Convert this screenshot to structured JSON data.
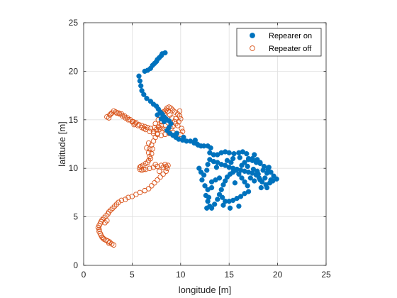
{
  "chart_data": {
    "type": "scatter",
    "title": "",
    "xlabel": "longitude [m]",
    "ylabel": "latitude [m]",
    "xlim": [
      0,
      25
    ],
    "ylim": [
      0,
      25
    ],
    "xticks": [
      "0",
      "5",
      "10",
      "15",
      "20",
      "25"
    ],
    "yticks": [
      "0",
      "5",
      "10",
      "15",
      "20",
      "25"
    ],
    "grid": true,
    "legend_position": "top-right",
    "series": [
      {
        "name": "Repearer on",
        "marker": "filled-circle",
        "color": "#0072BD",
        "points": [
          [
            8.4,
            21.9
          ],
          [
            8.1,
            21.8
          ],
          [
            8.0,
            21.6
          ],
          [
            7.8,
            21.4
          ],
          [
            7.6,
            21.2
          ],
          [
            7.5,
            21.0
          ],
          [
            7.3,
            20.8
          ],
          [
            7.1,
            20.6
          ],
          [
            6.9,
            20.3
          ],
          [
            6.6,
            20.1
          ],
          [
            6.3,
            20.0
          ],
          [
            5.7,
            19.5
          ],
          [
            5.8,
            19.0
          ],
          [
            5.9,
            18.5
          ],
          [
            6.0,
            18.0
          ],
          [
            6.2,
            17.6
          ],
          [
            6.5,
            17.2
          ],
          [
            6.9,
            16.9
          ],
          [
            7.2,
            16.6
          ],
          [
            7.5,
            16.4
          ],
          [
            7.7,
            16.1
          ],
          [
            7.9,
            15.8
          ],
          [
            8.1,
            15.6
          ],
          [
            8.3,
            15.3
          ],
          [
            8.5,
            15.1
          ],
          [
            8.8,
            14.9
          ],
          [
            9.0,
            14.6
          ],
          [
            8.8,
            14.2
          ],
          [
            8.6,
            13.9
          ],
          [
            8.9,
            13.6
          ],
          [
            9.2,
            13.4
          ],
          [
            9.5,
            13.2
          ],
          [
            9.8,
            13.0
          ],
          [
            10.2,
            12.9
          ],
          [
            10.6,
            12.8
          ],
          [
            11.0,
            12.8
          ],
          [
            11.4,
            12.6
          ],
          [
            11.8,
            12.4
          ],
          [
            12.1,
            12.3
          ],
          [
            12.4,
            12.3
          ],
          [
            12.8,
            12.3
          ],
          [
            13.1,
            12.1
          ],
          [
            13.0,
            11.6
          ],
          [
            13.4,
            11.4
          ],
          [
            13.8,
            11.4
          ],
          [
            14.2,
            11.6
          ],
          [
            14.6,
            11.7
          ],
          [
            15.0,
            11.6
          ],
          [
            15.5,
            11.5
          ],
          [
            16.0,
            11.6
          ],
          [
            16.4,
            11.7
          ],
          [
            16.8,
            11.5
          ],
          [
            17.0,
            11.0
          ],
          [
            17.4,
            10.8
          ],
          [
            17.8,
            10.6
          ],
          [
            18.2,
            10.5
          ],
          [
            18.6,
            10.2
          ],
          [
            19.0,
            9.9
          ],
          [
            19.3,
            9.6
          ],
          [
            19.6,
            9.2
          ],
          [
            19.9,
            8.9
          ],
          [
            19.5,
            8.7
          ],
          [
            19.2,
            8.5
          ],
          [
            18.8,
            8.3
          ],
          [
            18.4,
            8.6
          ],
          [
            18.1,
            9.0
          ],
          [
            17.8,
            9.3
          ],
          [
            17.4,
            9.5
          ],
          [
            17.0,
            9.6
          ],
          [
            16.6,
            9.7
          ],
          [
            16.2,
            9.8
          ],
          [
            15.8,
            9.9
          ],
          [
            15.4,
            10.0
          ],
          [
            15.0,
            10.1
          ],
          [
            14.6,
            10.3
          ],
          [
            14.2,
            10.4
          ],
          [
            13.8,
            10.6
          ],
          [
            13.4,
            10.7
          ],
          [
            13.0,
            10.9
          ],
          [
            12.8,
            10.4
          ],
          [
            12.7,
            9.8
          ],
          [
            12.4,
            9.3
          ],
          [
            12.1,
            9.6
          ],
          [
            11.9,
            10.0
          ],
          [
            12.2,
            8.8
          ],
          [
            12.5,
            8.2
          ],
          [
            12.8,
            7.8
          ],
          [
            12.6,
            7.2
          ],
          [
            12.8,
            6.6
          ],
          [
            13.0,
            6.1
          ],
          [
            12.7,
            5.9
          ],
          [
            13.2,
            5.9
          ],
          [
            13.5,
            6.3
          ],
          [
            13.8,
            6.8
          ],
          [
            14.0,
            7.3
          ],
          [
            14.2,
            7.8
          ],
          [
            14.4,
            8.3
          ],
          [
            14.6,
            8.7
          ],
          [
            14.8,
            9.1
          ],
          [
            15.1,
            9.4
          ],
          [
            15.4,
            9.6
          ],
          [
            15.7,
            9.8
          ],
          [
            16.0,
            9.4
          ],
          [
            16.3,
            9.0
          ],
          [
            16.6,
            8.6
          ],
          [
            16.9,
            8.2
          ],
          [
            17.0,
            7.6
          ],
          [
            16.6,
            7.4
          ],
          [
            16.2,
            7.1
          ],
          [
            15.8,
            6.9
          ],
          [
            15.4,
            6.7
          ],
          [
            15.0,
            6.6
          ],
          [
            14.6,
            6.6
          ],
          [
            14.4,
            6.2
          ],
          [
            16.0,
            6.1
          ],
          [
            15.1,
            5.9
          ],
          [
            16.3,
            10.3
          ],
          [
            16.6,
            10.6
          ],
          [
            17.0,
            10.9
          ],
          [
            17.4,
            11.0
          ],
          [
            17.9,
            10.9
          ],
          [
            18.2,
            10.6
          ],
          [
            18.5,
            9.8
          ],
          [
            18.9,
            9.5
          ],
          [
            18.2,
            8.8
          ],
          [
            17.6,
            8.7
          ],
          [
            17.2,
            9.0
          ],
          [
            17.5,
            9.9
          ],
          [
            17.9,
            9.7
          ],
          [
            18.7,
            9.0
          ],
          [
            19.3,
            8.8
          ],
          [
            18.3,
            8.0
          ],
          [
            18.9,
            8.0
          ],
          [
            14.0,
            9.0
          ],
          [
            13.6,
            8.8
          ],
          [
            13.2,
            8.6
          ],
          [
            14.8,
            10.8
          ],
          [
            15.4,
            11.0
          ],
          [
            16.1,
            11.1
          ],
          [
            13.2,
            8.0
          ],
          [
            14.3,
            7.0
          ],
          [
            15.6,
            8.5
          ],
          [
            16.9,
            10.2
          ],
          [
            18.0,
            9.4
          ],
          [
            19.1,
            10.1
          ],
          [
            17.6,
            11.4
          ],
          [
            13.7,
            10.1
          ],
          [
            15.2,
            10.6
          ],
          [
            12.9,
            7.0
          ],
          [
            9.6,
            13.6
          ],
          [
            10.3,
            13.2
          ],
          [
            11.5,
            12.9
          ],
          [
            11.7,
            12.5
          ],
          [
            8.3,
            14.8
          ],
          [
            8.0,
            15.1
          ],
          [
            7.6,
            15.5
          ]
        ]
      },
      {
        "name": "Repeater off",
        "marker": "open-circle",
        "color": "#D95319",
        "points": [
          [
            3.1,
            2.1
          ],
          [
            2.9,
            2.2
          ],
          [
            2.7,
            2.4
          ],
          [
            2.5,
            2.5
          ],
          [
            2.3,
            2.6
          ],
          [
            2.1,
            2.7
          ],
          [
            1.9,
            2.9
          ],
          [
            1.8,
            3.1
          ],
          [
            1.7,
            3.3
          ],
          [
            1.6,
            3.5
          ],
          [
            1.6,
            3.7
          ],
          [
            1.5,
            3.9
          ],
          [
            1.6,
            4.1
          ],
          [
            1.7,
            4.3
          ],
          [
            1.8,
            4.5
          ],
          [
            1.9,
            4.7
          ],
          [
            2.1,
            4.9
          ],
          [
            2.3,
            5.1
          ],
          [
            2.5,
            5.3
          ],
          [
            2.6,
            5.5
          ],
          [
            2.8,
            5.7
          ],
          [
            3.0,
            5.9
          ],
          [
            3.2,
            6.1
          ],
          [
            3.4,
            6.3
          ],
          [
            3.6,
            6.5
          ],
          [
            3.9,
            6.7
          ],
          [
            4.3,
            6.8
          ],
          [
            4.6,
            7.0
          ],
          [
            5.0,
            7.1
          ],
          [
            5.4,
            7.3
          ],
          [
            5.8,
            7.5
          ],
          [
            6.3,
            7.7
          ],
          [
            6.7,
            7.9
          ],
          [
            7.0,
            8.2
          ],
          [
            7.3,
            8.5
          ],
          [
            7.6,
            8.8
          ],
          [
            7.9,
            9.1
          ],
          [
            8.2,
            9.4
          ],
          [
            8.5,
            9.7
          ],
          [
            8.6,
            10.0
          ],
          [
            8.7,
            10.3
          ],
          [
            8.4,
            10.4
          ],
          [
            8.0,
            10.3
          ],
          [
            7.6,
            10.2
          ],
          [
            7.2,
            10.1
          ],
          [
            6.8,
            10.0
          ],
          [
            6.4,
            9.9
          ],
          [
            6.0,
            9.8
          ],
          [
            5.8,
            9.9
          ],
          [
            5.8,
            10.1
          ],
          [
            6.1,
            10.3
          ],
          [
            6.4,
            10.5
          ],
          [
            6.7,
            10.8
          ],
          [
            6.8,
            11.2
          ],
          [
            6.7,
            11.6
          ],
          [
            6.8,
            12.0
          ],
          [
            7.0,
            12.4
          ],
          [
            7.2,
            12.8
          ],
          [
            7.4,
            13.2
          ],
          [
            7.6,
            13.6
          ],
          [
            7.8,
            14.0
          ],
          [
            8.0,
            14.4
          ],
          [
            8.1,
            14.8
          ],
          [
            8.2,
            15.2
          ],
          [
            8.3,
            15.6
          ],
          [
            8.4,
            15.9
          ],
          [
            8.6,
            16.2
          ],
          [
            8.8,
            16.3
          ],
          [
            9.0,
            16.2
          ],
          [
            9.2,
            16.0
          ],
          [
            9.4,
            15.8
          ],
          [
            9.7,
            15.6
          ],
          [
            9.9,
            15.4
          ],
          [
            10.0,
            15.1
          ],
          [
            9.8,
            14.8
          ],
          [
            9.5,
            14.6
          ],
          [
            9.2,
            14.3
          ],
          [
            9.0,
            14.1
          ],
          [
            8.7,
            13.9
          ],
          [
            8.4,
            14.0
          ],
          [
            8.1,
            14.1
          ],
          [
            7.8,
            14.2
          ],
          [
            7.5,
            14.0
          ],
          [
            7.2,
            13.8
          ],
          [
            6.9,
            14.1
          ],
          [
            6.6,
            14.2
          ],
          [
            6.3,
            14.3
          ],
          [
            6.0,
            14.4
          ],
          [
            5.7,
            14.5
          ],
          [
            5.4,
            14.7
          ],
          [
            5.1,
            14.8
          ],
          [
            4.8,
            15.0
          ],
          [
            4.5,
            15.2
          ],
          [
            4.2,
            15.4
          ],
          [
            3.9,
            15.6
          ],
          [
            3.6,
            15.7
          ],
          [
            3.3,
            15.8
          ],
          [
            3.1,
            15.9
          ],
          [
            2.9,
            15.7
          ],
          [
            2.7,
            15.5
          ],
          [
            2.4,
            15.3
          ],
          [
            2.6,
            15.2
          ],
          [
            2.8,
            15.6
          ],
          [
            3.4,
            15.7
          ],
          [
            3.7,
            15.6
          ],
          [
            4.0,
            15.4
          ],
          [
            4.3,
            15.2
          ],
          [
            4.6,
            15.0
          ],
          [
            5.0,
            14.8
          ],
          [
            5.3,
            14.6
          ],
          [
            5.6,
            14.4
          ],
          [
            6.0,
            14.2
          ],
          [
            6.4,
            14.0
          ],
          [
            6.8,
            13.8
          ],
          [
            7.2,
            13.6
          ],
          [
            7.6,
            13.5
          ],
          [
            8.0,
            13.4
          ],
          [
            8.4,
            13.5
          ],
          [
            8.8,
            13.6
          ],
          [
            9.2,
            13.7
          ],
          [
            9.6,
            13.6
          ],
          [
            10.0,
            13.5
          ],
          [
            10.2,
            13.8
          ],
          [
            10.1,
            14.1
          ],
          [
            9.7,
            14.4
          ],
          [
            9.4,
            14.8
          ],
          [
            9.1,
            15.2
          ],
          [
            8.9,
            15.5
          ],
          [
            8.7,
            15.9
          ],
          [
            8.5,
            16.0
          ],
          [
            8.2,
            15.8
          ],
          [
            7.9,
            15.4
          ],
          [
            7.7,
            15.0
          ],
          [
            7.4,
            14.6
          ],
          [
            7.1,
            12.0
          ],
          [
            7.0,
            11.5
          ],
          [
            6.9,
            11.0
          ],
          [
            6.6,
            10.6
          ],
          [
            7.4,
            10.4
          ],
          [
            8.2,
            10.1
          ],
          [
            8.5,
            10.2
          ],
          [
            7.8,
            9.7
          ],
          [
            6.2,
            9.9
          ],
          [
            5.9,
            10.2
          ],
          [
            6.5,
            12.1
          ],
          [
            6.7,
            12.6
          ],
          [
            7.3,
            14.2
          ],
          [
            7.7,
            14.3
          ],
          [
            9.5,
            15.1
          ],
          [
            9.9,
            15.9
          ],
          [
            8.7,
            14.7
          ],
          [
            8.0,
            14.8
          ],
          [
            6.2,
            14.1
          ],
          [
            5.2,
            14.5
          ],
          [
            2.2,
            4.4
          ],
          [
            2.4,
            4.6
          ],
          [
            2.0,
            2.8
          ],
          [
            2.6,
            2.3
          ]
        ]
      }
    ]
  }
}
